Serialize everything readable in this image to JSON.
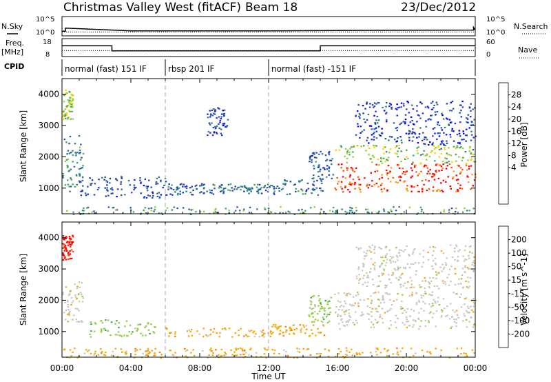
{
  "header": {
    "station": "Christmas Valley West (fitACF)",
    "beam": "Beam 18",
    "date": "23/Dec/2012"
  },
  "top_panels": {
    "nsky_label": "N.Sky",
    "nsearch_label": "N.Search",
    "noise_ticks_left": [
      "10^5",
      "10^0"
    ],
    "noise_ticks_right": [
      "10^5",
      "10^0"
    ],
    "freq_label_1": "Freq.",
    "freq_label_2": "[MHz]",
    "freq_ticks": [
      "18",
      "8"
    ],
    "nave_label": "Nave",
    "nave_ticks": [
      "60",
      "0"
    ],
    "cpid_label": "CPID",
    "cpid_segments": [
      {
        "label": "normal (fast) 151 IF",
        "start_h": 0,
        "end_h": 6
      },
      {
        "label": "rbsp 201 IF",
        "start_h": 6,
        "end_h": 12
      },
      {
        "label": "normal (fast) -151 IF",
        "start_h": 12,
        "end_h": 24
      }
    ]
  },
  "chart_data": [
    {
      "type": "line",
      "title": "N.Sky / N.Search",
      "x": [
        0,
        0.2,
        0.2,
        4,
        8,
        12,
        16,
        23.9,
        23.9,
        24
      ],
      "series": [
        {
          "name": "N.Sky",
          "values": [
            1.2,
            1.2,
            2.0,
            1.3,
            1.3,
            1.3,
            1.4,
            1.5,
            2.2,
            1.5
          ]
        },
        {
          "name": "N.Search",
          "values": [
            1.0,
            1.0,
            1.0,
            1.0,
            1.0,
            1.0,
            1.0,
            1.0,
            1.0,
            1.0
          ]
        }
      ],
      "ylim": [
        0,
        5
      ],
      "ylog": true
    },
    {
      "type": "line",
      "title": "Freq. [MHz] / Nave",
      "x": [
        0,
        2.9,
        2.9,
        15,
        15,
        24
      ],
      "series": [
        {
          "name": "Freq.",
          "values": [
            14.0,
            14.0,
            11.2,
            11.2,
            14.0,
            14.0
          ]
        },
        {
          "name": "Nave",
          "values": [
            20,
            20,
            20,
            20,
            20,
            20
          ]
        }
      ],
      "ylim_freq": [
        8,
        18
      ],
      "ylim_nave": [
        0,
        60
      ]
    },
    {
      "type": "heatmap",
      "title": "Power",
      "ylabel": "Slant Range [km]",
      "xlabel": "",
      "xlim": [
        0,
        24
      ],
      "ylim": [
        180,
        4500
      ],
      "x_ticks": [
        "00:00",
        "04:00",
        "08:00",
        "12:00",
        "16:00",
        "20:00",
        "00:00"
      ],
      "y_ticks": [
        1000,
        2000,
        3000,
        4000
      ],
      "colorbar_label": "Power [dB]",
      "colorbar_ticks": [
        "28",
        "24",
        "20",
        "16",
        "12",
        "8",
        "4"
      ],
      "colorbar_colors": [
        "#ff0000",
        "#ff5a00",
        "#ff9a00",
        "#ffd000",
        "#8fd13c",
        "#3fa85a",
        "#2a7a86",
        "#2a4fb0",
        "#1f2fd6",
        "#0000ff"
      ],
      "regions": [
        {
          "h0": 0,
          "h1": 1.2,
          "r0": 900,
          "r1": 2700,
          "level": 0.35
        },
        {
          "h0": 0,
          "h1": 0.6,
          "r0": 3200,
          "r1": 4200,
          "level": 0.55
        },
        {
          "h0": 1,
          "h1": 6,
          "r0": 700,
          "r1": 1400,
          "level": 0.2
        },
        {
          "h0": 6,
          "h1": 9,
          "r0": 800,
          "r1": 1200,
          "level": 0.25
        },
        {
          "h0": 9,
          "h1": 12,
          "r0": 850,
          "r1": 1150,
          "level": 0.3
        },
        {
          "h0": 12,
          "h1": 15.2,
          "r0": 800,
          "r1": 1300,
          "level": 0.3
        },
        {
          "h0": 14.3,
          "h1": 15.7,
          "r0": 1300,
          "r1": 2200,
          "level": 0.25
        },
        {
          "h0": 8.4,
          "h1": 9.6,
          "r0": 2700,
          "r1": 3600,
          "level": 0.2
        },
        {
          "h0": 15.8,
          "h1": 24,
          "r0": 900,
          "r1": 1800,
          "level": 0.95
        },
        {
          "h0": 15.8,
          "h1": 24,
          "r0": 1800,
          "r1": 2400,
          "level": 0.55
        },
        {
          "h0": 17,
          "h1": 24,
          "r0": 2400,
          "r1": 3800,
          "level": 0.15
        },
        {
          "h0": 0,
          "h1": 24,
          "r0": 180,
          "r1": 420,
          "level": 0.4
        }
      ]
    },
    {
      "type": "heatmap",
      "title": "Velocity",
      "ylabel": "Slant Range [km]",
      "xlabel": "Time UT",
      "xlim": [
        0,
        24
      ],
      "ylim": [
        180,
        4500
      ],
      "x_ticks": [
        "00:00",
        "04:00",
        "08:00",
        "12:00",
        "16:00",
        "20:00",
        "00:00"
      ],
      "y_ticks": [
        1000,
        2000,
        3000,
        4000
      ],
      "colorbar_label": "Velocity [m s^-1]",
      "colorbar_ticks": [
        "200",
        "100",
        "50",
        "15",
        "-15",
        "-50",
        "-100",
        "-200"
      ],
      "colorbar_colors": [
        "#1f2fd6",
        "#2a7a86",
        "#3fa85a",
        "#8fd13c",
        "#c8c8c0",
        "#ffa500",
        "#ff7a00",
        "#ff4a00",
        "#ff0000"
      ],
      "regions": [
        {
          "h0": 0,
          "h1": 1.2,
          "r0": 1300,
          "r1": 2700,
          "level": "gray"
        },
        {
          "h0": 0,
          "h1": 0.6,
          "r0": 3300,
          "r1": 4100,
          "level": "red"
        },
        {
          "h0": 1.5,
          "h1": 5.5,
          "r0": 850,
          "r1": 1400,
          "level": "green"
        },
        {
          "h0": 6,
          "h1": 12,
          "r0": 850,
          "r1": 1150,
          "level": "orange"
        },
        {
          "h0": 12,
          "h1": 15.2,
          "r0": 850,
          "r1": 1250,
          "level": "orange"
        },
        {
          "h0": 14.3,
          "h1": 15.6,
          "r0": 1300,
          "r1": 2200,
          "level": "green"
        },
        {
          "h0": 15.8,
          "h1": 24,
          "r0": 1100,
          "r1": 2300,
          "level": "gray"
        },
        {
          "h0": 17,
          "h1": 24,
          "r0": 2400,
          "r1": 3800,
          "level": "gray"
        },
        {
          "h0": 0,
          "h1": 24,
          "r0": 180,
          "r1": 500,
          "level": "orange"
        }
      ]
    }
  ],
  "colors": {
    "axis": "#000000",
    "dashed_divider": "#aaaaaa"
  }
}
